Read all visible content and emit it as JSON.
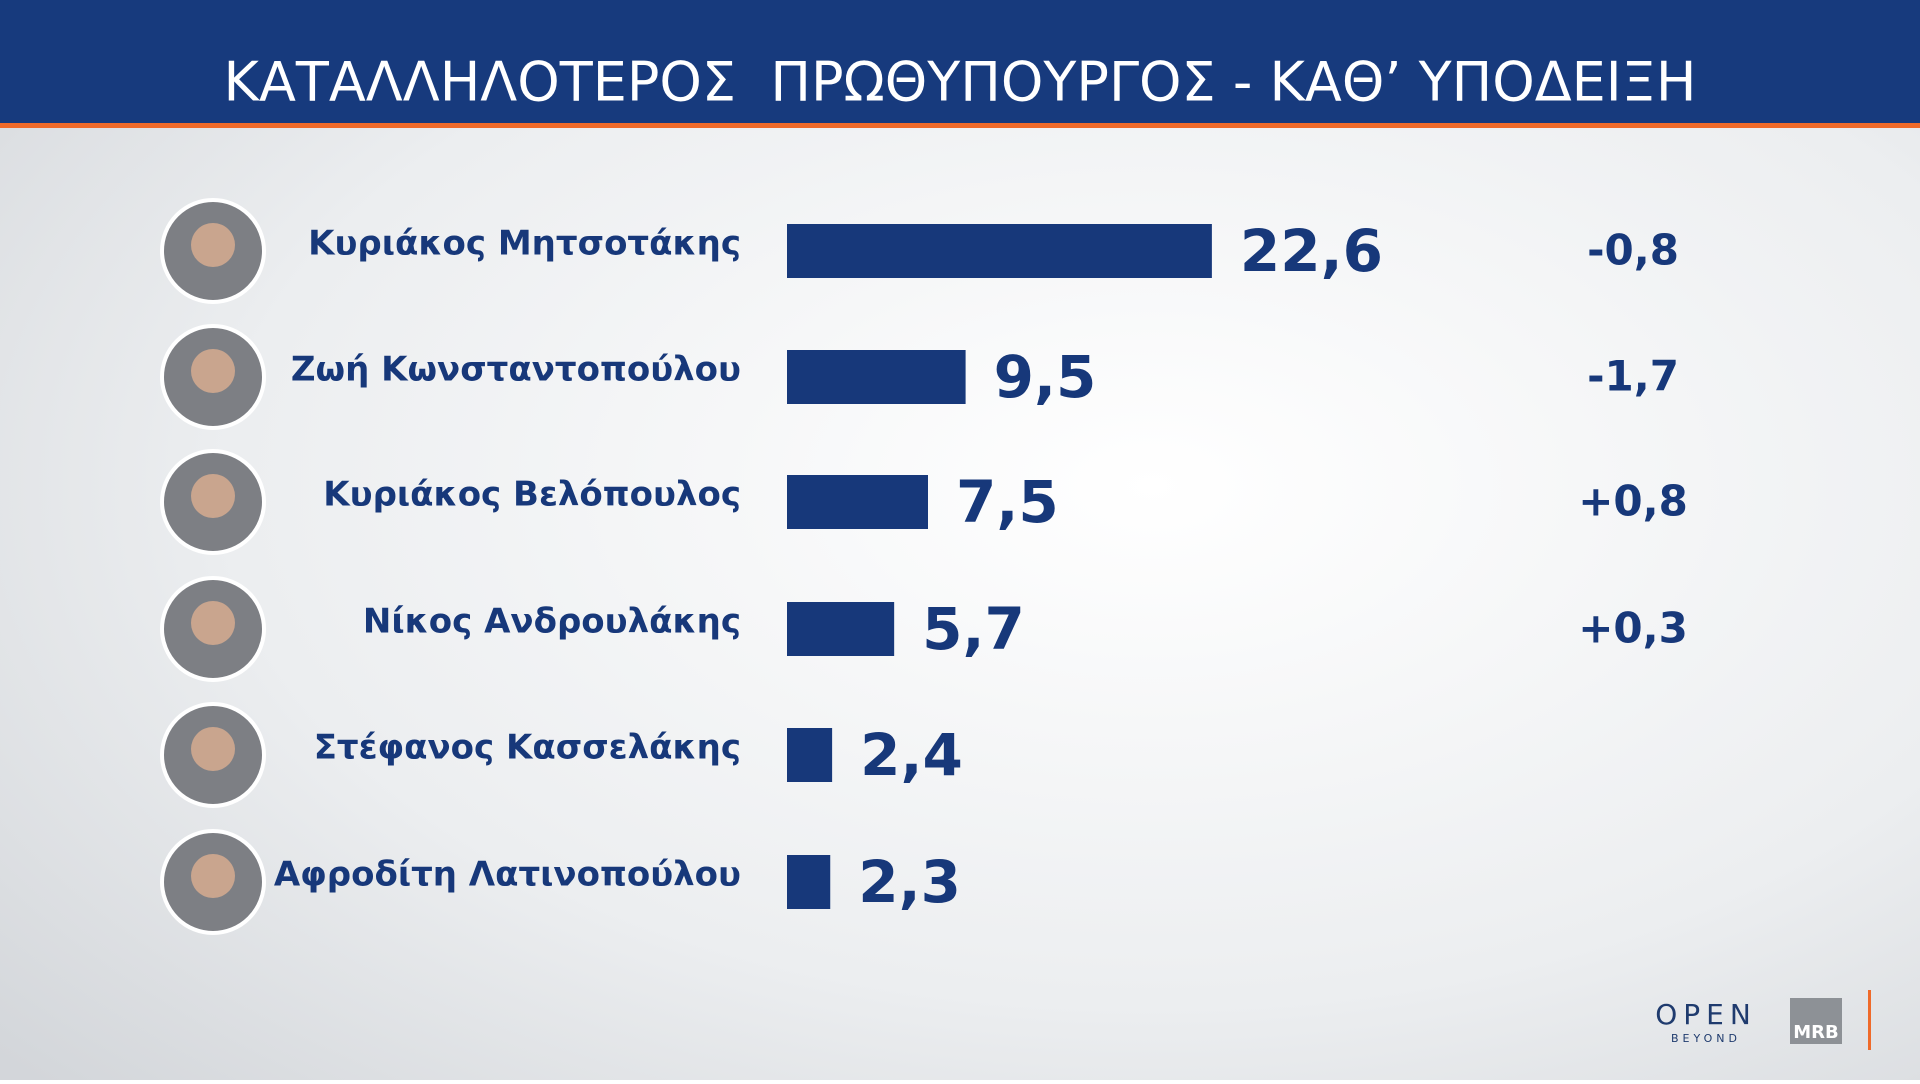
{
  "chart_data": {
    "type": "bar",
    "orientation": "horizontal",
    "title": "ΚΑΤΑΛΛΗΛΟΤΕΡΟΣ  ΠΡΩΘΥΠΟΥΡΓΟΣ - ΚΑΘ’ ΥΠΟΔΕΙΞΗ",
    "categories": [
      "Κυριάκος Μητσοτάκης",
      "Ζωή Κωνσταντοπούλου",
      "Κυριάκος Βελόπουλος",
      "Νίκος Ανδρουλάκης",
      "Στέφανος Κασσελάκης",
      "Αφροδίτη Λατινοπούλου"
    ],
    "values": [
      22.6,
      9.5,
      7.5,
      5.7,
      2.4,
      2.3
    ],
    "value_labels": [
      "22,6",
      "9,5",
      "7,5",
      "5,7",
      "2,4",
      "2,3"
    ],
    "changes": [
      -0.8,
      -1.7,
      0.8,
      0.3,
      null,
      null
    ],
    "change_labels": [
      "-0,8",
      "-1,7",
      "+0,8",
      "+0,3",
      null,
      null
    ],
    "color": "#17387a"
  },
  "logos": {
    "channel": "OPEN",
    "channel_sub": "BEYOND",
    "pollster": "MRB"
  }
}
